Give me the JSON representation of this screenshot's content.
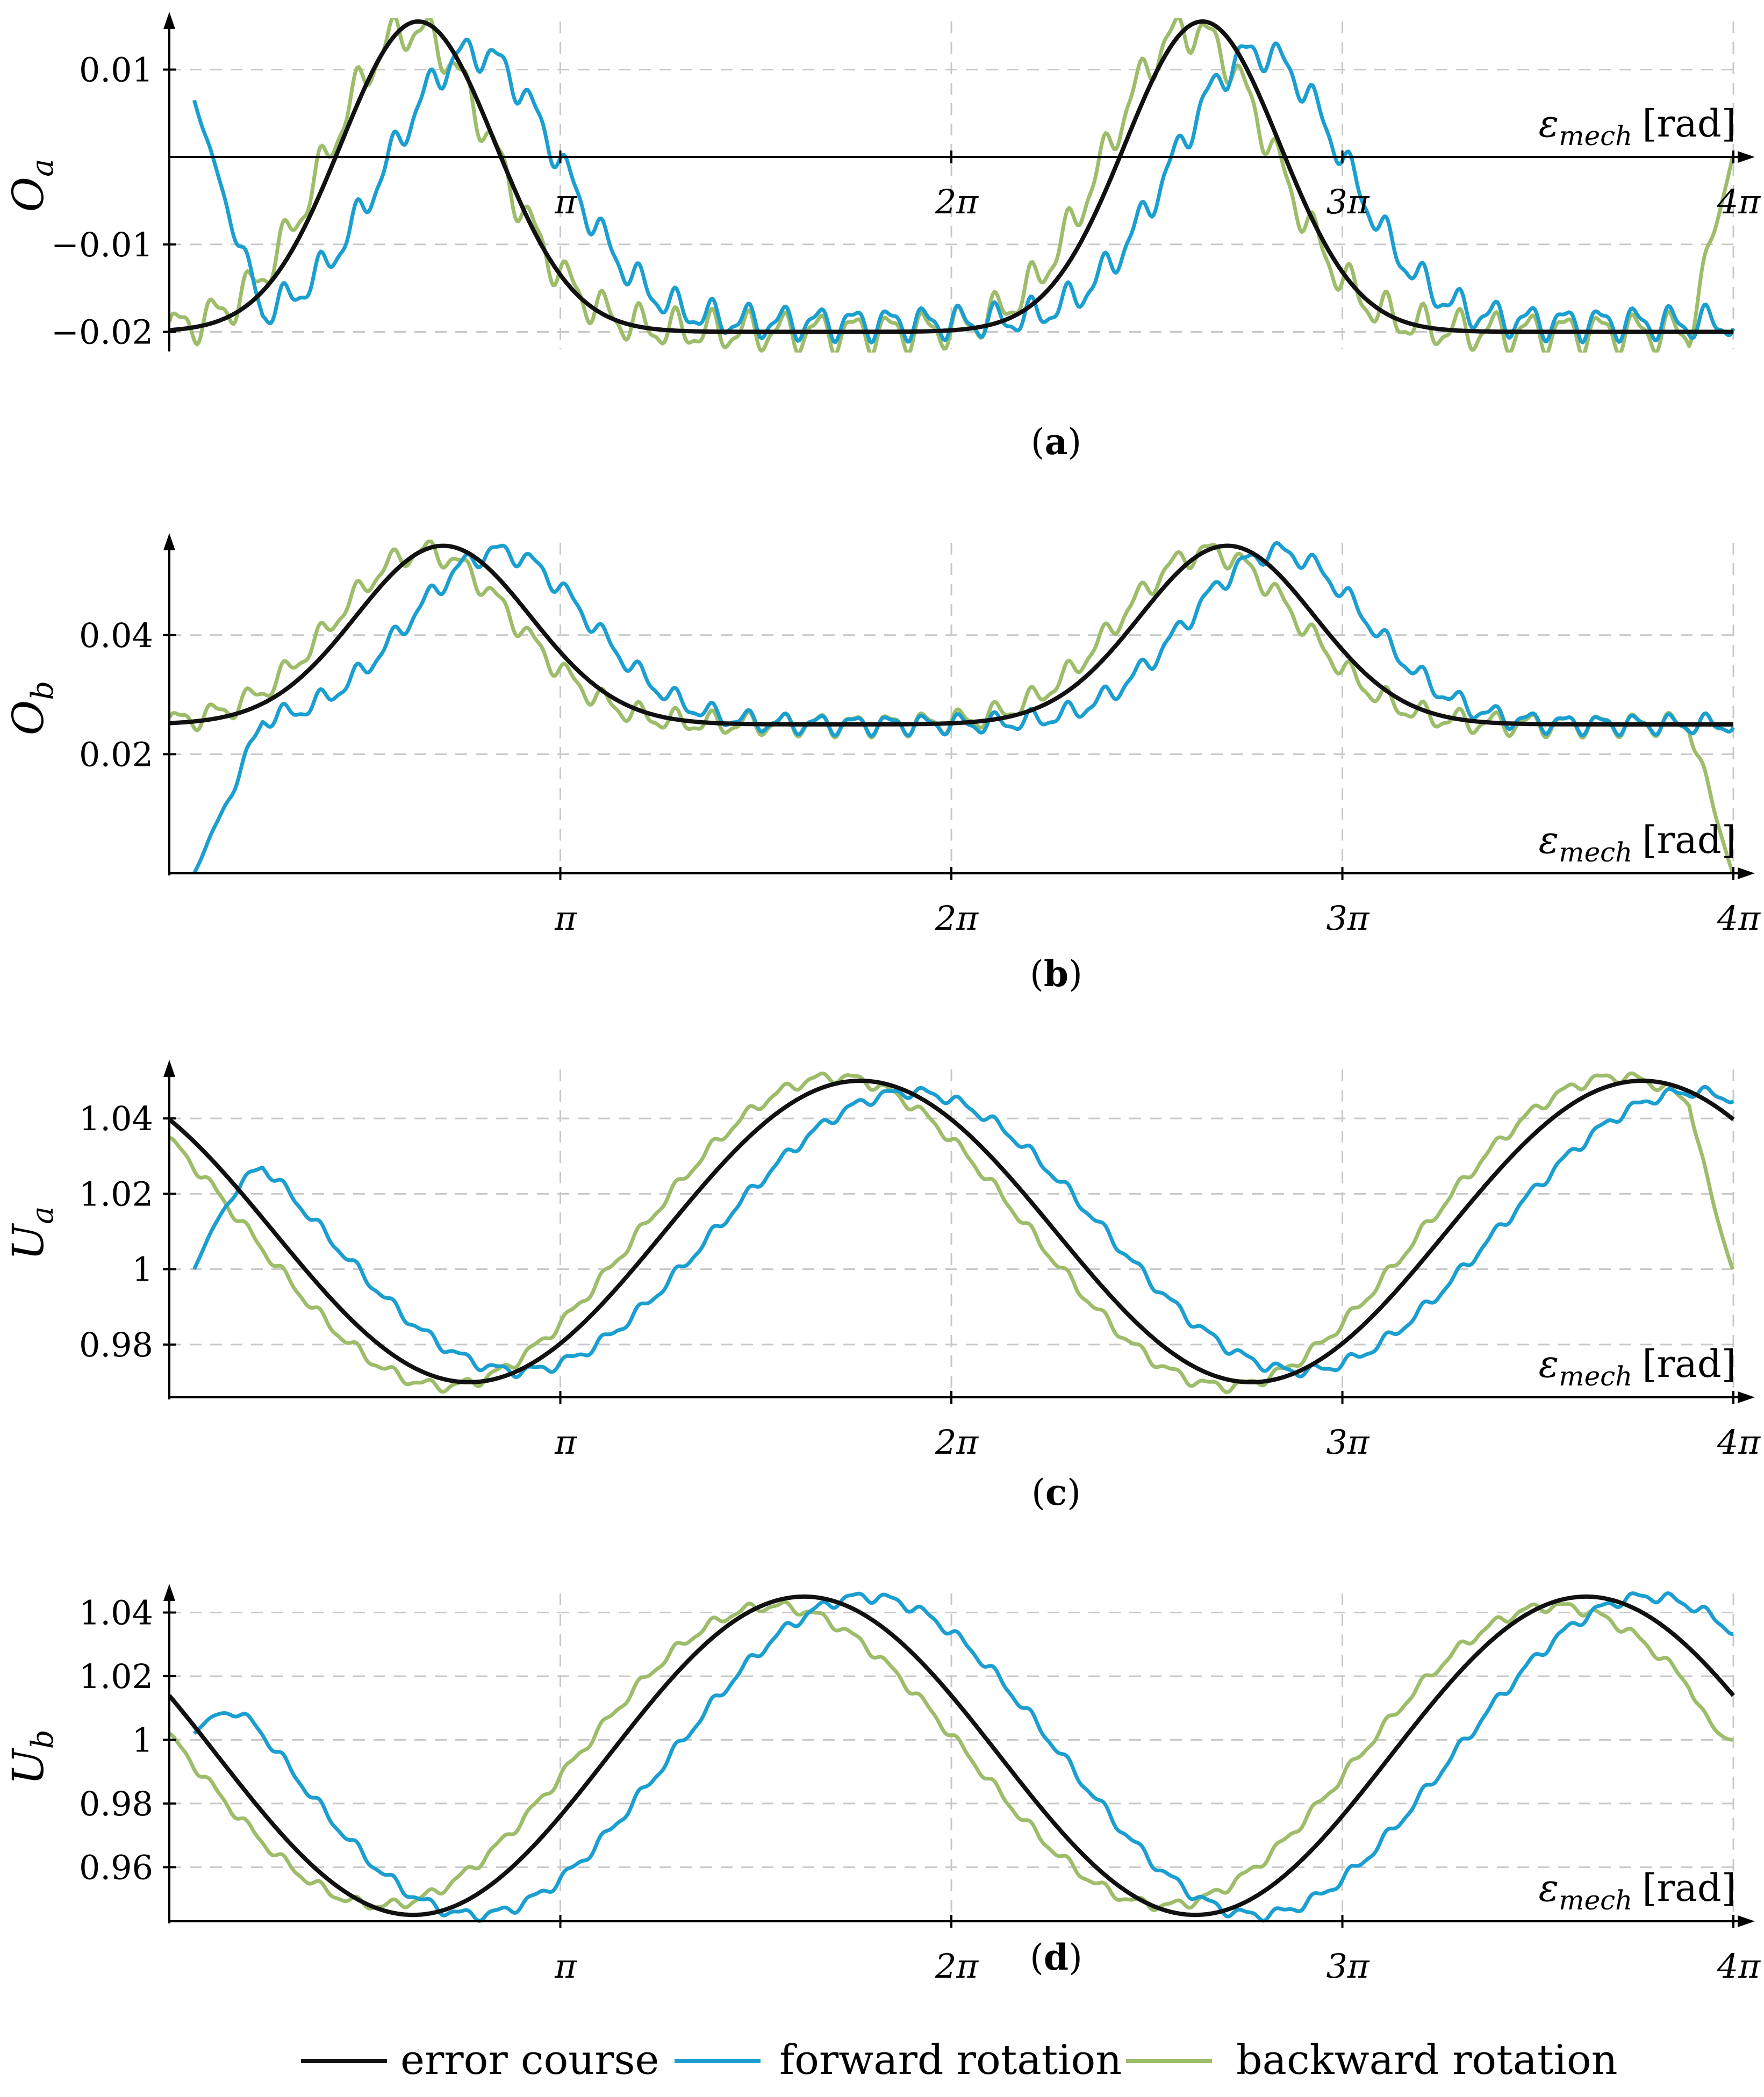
{
  "figure": {
    "colors": {
      "error": "#111111",
      "forward": "#1a9fd0",
      "backward": "#9dbd6a",
      "grid": "#c8c8c8",
      "axis": "#000000"
    },
    "legend": [
      {
        "key": "error",
        "label": "error course"
      },
      {
        "key": "forward",
        "label": "forward rotation"
      },
      {
        "key": "backward",
        "label": "backward rotation"
      }
    ]
  },
  "chart_data": [
    {
      "id": "a",
      "type": "line",
      "caption": "a",
      "ylabel": "O",
      "ylabel_sub": "a",
      "xlabel": "ε",
      "xlabel_sub": "mech",
      "xlabel_unit": "[rad]",
      "xlim": [
        0,
        12.566
      ],
      "ylim": [
        -0.022,
        0.0155
      ],
      "x_axis_at": 0,
      "yticks": [
        0.01,
        -0.01,
        -0.02
      ],
      "ytick_labels": [
        "0.01",
        "−0.01",
        "−0.02"
      ],
      "xticks": [
        3.1416,
        6.2832,
        9.4248,
        12.566
      ],
      "xtick_labels": [
        "π",
        "2π",
        "3π",
        "4π"
      ],
      "series": [
        {
          "key": "error",
          "name": "error course",
          "params": {
            "kind": "peak",
            "base": -0.02,
            "amp": 0.0355,
            "centers": [
              2.0,
              8.3
            ],
            "sigma": 0.62,
            "ripple": 0
          }
        },
        {
          "key": "forward",
          "name": "forward rotation",
          "params": {
            "kind": "peak",
            "base": -0.019,
            "amp": 0.031,
            "centers": [
              2.45,
              8.75
            ],
            "sigma": 0.68,
            "ripple": 0.0016,
            "ripple_freq": 22,
            "start": [
              0.2,
              0.0065
            ],
            "start_drop": 0.0
          }
        },
        {
          "key": "backward",
          "name": "backward rotation",
          "params": {
            "kind": "peak",
            "base": -0.02,
            "amp": 0.0345,
            "centers": [
              1.95,
              8.2
            ],
            "sigma": 0.66,
            "ripple": 0.0019,
            "ripple_freq": 22,
            "end": [
              12.56,
              0.0
            ]
          }
        }
      ]
    },
    {
      "id": "b",
      "type": "line",
      "caption": "b",
      "ylabel": "O",
      "ylabel_sub": "b",
      "xlabel": "ε",
      "xlabel_sub": "mech",
      "xlabel_unit": "[rad]",
      "xlim": [
        0,
        12.566
      ],
      "ylim": [
        0.0,
        0.0555
      ],
      "yticks": [
        0.04,
        0.02
      ],
      "ytick_labels": [
        "0.04",
        "0.02"
      ],
      "xticks": [
        3.1416,
        6.2832,
        9.4248,
        12.566
      ],
      "xtick_labels": [
        "π",
        "2π",
        "3π",
        "4π"
      ],
      "series": [
        {
          "key": "error",
          "name": "error course",
          "params": {
            "kind": "peak",
            "base": 0.025,
            "amp": 0.03,
            "centers": [
              2.2,
              8.5
            ],
            "sigma": 0.7,
            "ripple": 0
          }
        },
        {
          "key": "forward",
          "name": "forward rotation",
          "params": {
            "kind": "peak",
            "base": 0.025,
            "amp": 0.029,
            "centers": [
              2.65,
              8.9
            ],
            "sigma": 0.72,
            "ripple": 0.0014,
            "ripple_freq": 22,
            "start": [
              0.2,
              0.0
            ]
          }
        },
        {
          "key": "backward",
          "name": "backward rotation",
          "params": {
            "kind": "peak",
            "base": 0.025,
            "amp": 0.029,
            "centers": [
              2.05,
              8.35
            ],
            "sigma": 0.72,
            "ripple": 0.0016,
            "ripple_freq": 22,
            "end": [
              12.56,
              0.0
            ]
          }
        }
      ]
    },
    {
      "id": "c",
      "type": "line",
      "caption": "c",
      "ylabel": "U",
      "ylabel_sub": "a",
      "xlabel": "ε",
      "xlabel_sub": "mech",
      "xlabel_unit": "[rad]",
      "xlim": [
        0,
        12.566
      ],
      "ylim": [
        0.966,
        1.053
      ],
      "yticks": [
        1.04,
        1.02,
        1.0,
        0.98
      ],
      "ytick_labels": [
        "1.04",
        "1.02",
        "1",
        "0.98"
      ],
      "xticks": [
        3.1416,
        6.2832,
        9.4248,
        12.566
      ],
      "xtick_labels": [
        "π",
        "2π",
        "3π",
        "4π"
      ],
      "series": [
        {
          "key": "error",
          "name": "error course",
          "params": {
            "kind": "cos",
            "mean": 1.01,
            "amp": 0.04,
            "peak_at": 5.55,
            "ripple": 0
          }
        },
        {
          "key": "forward",
          "name": "forward rotation",
          "params": {
            "kind": "cos",
            "mean": 1.01,
            "amp": 0.037,
            "peak_at": 5.95,
            "ripple": 0.0012,
            "ripple_freq": 22,
            "start": [
              0.2,
              1.0
            ]
          }
        },
        {
          "key": "backward",
          "name": "backward rotation",
          "params": {
            "kind": "cos",
            "mean": 1.01,
            "amp": 0.041,
            "peak_at": 5.35,
            "ripple": 0.0012,
            "ripple_freq": 22,
            "end": [
              12.56,
              1.0
            ]
          }
        }
      ]
    },
    {
      "id": "d",
      "type": "line",
      "caption": "d",
      "ylabel": "U",
      "ylabel_sub": "b",
      "xlabel": "ε",
      "xlabel_sub": "mech",
      "xlabel_unit": "[rad]",
      "xlim": [
        0,
        12.566
      ],
      "ylim": [
        0.943,
        1.046
      ],
      "yticks": [
        1.04,
        1.02,
        1.0,
        0.98,
        0.96
      ],
      "ytick_labels": [
        "1.04",
        "1.02",
        "1",
        "0.98",
        "0.96"
      ],
      "xticks": [
        3.1416,
        6.2832,
        9.4248,
        12.566
      ],
      "xtick_labels": [
        "π",
        "2π",
        "3π",
        "4π"
      ],
      "series": [
        {
          "key": "error",
          "name": "error course",
          "params": {
            "kind": "cos",
            "mean": 0.995,
            "amp": 0.05,
            "peak_at": 5.1,
            "ripple": 0
          }
        },
        {
          "key": "forward",
          "name": "forward rotation",
          "params": {
            "kind": "cos",
            "mean": 0.995,
            "amp": 0.05,
            "peak_at": 5.6,
            "ripple": 0.0014,
            "ripple_freq": 22,
            "start": [
              0.2,
              1.002
            ]
          }
        },
        {
          "key": "backward",
          "name": "backward rotation",
          "params": {
            "kind": "cos",
            "mean": 0.995,
            "amp": 0.047,
            "peak_at": 4.85,
            "ripple": 0.0013,
            "ripple_freq": 22,
            "end": [
              12.56,
              1.0
            ]
          }
        }
      ]
    }
  ]
}
